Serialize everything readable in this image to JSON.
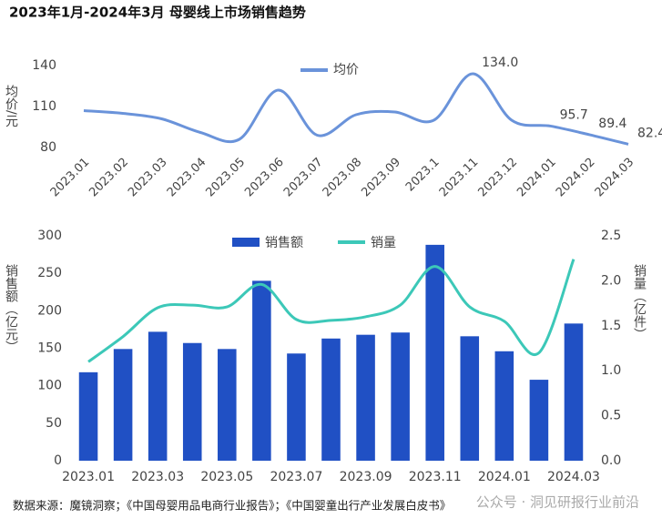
{
  "chart_data": [
    {
      "type": "line",
      "title": "2023年1月-2024年3月 母婴线上市场销售趋势",
      "ylabel": "均价/元",
      "categories": [
        "2023.01",
        "2023.02",
        "2023.03",
        "2023.04",
        "2023.05",
        "2023.06",
        "2023.07",
        "2023.08",
        "2023.09",
        "2023.1",
        "2023.11",
        "2023.12",
        "2024.01",
        "2024.02",
        "2024.03"
      ],
      "series": [
        {
          "name": "均价",
          "color": "#6a93da",
          "values": [
            107,
            105,
            101,
            91,
            86,
            122,
            89,
            104,
            106,
            100,
            134,
            100,
            95.7,
            89.4,
            82.4
          ],
          "value_labels": [
            null,
            null,
            null,
            null,
            null,
            null,
            null,
            null,
            null,
            null,
            "134.0",
            null,
            "95.7",
            "89.4",
            "82.4"
          ]
        }
      ],
      "ylim": [
        80,
        140
      ],
      "yticks": [
        80,
        110,
        140
      ],
      "grid": false,
      "legend": "top"
    },
    {
      "type": "combo",
      "ylabel": "销售额（亿元）",
      "y2label": "销量（亿件）",
      "categories": [
        "2023.01",
        null,
        "2023.03",
        null,
        "2023.05",
        null,
        "2023.07",
        null,
        "2023.09",
        null,
        "2023.11",
        null,
        "2024.01",
        null,
        "2024.03"
      ],
      "series": [
        {
          "name": "销售额",
          "type": "bar",
          "color": "#2050c4",
          "values": [
            118,
            149,
            172,
            157,
            149,
            240,
            143,
            163,
            168,
            171,
            288,
            166,
            146,
            108,
            183
          ]
        },
        {
          "name": "销量",
          "type": "line",
          "axis": "y2",
          "color": "#3cc8b8",
          "values": [
            1.1,
            1.38,
            1.7,
            1.73,
            1.71,
            1.96,
            1.57,
            1.56,
            1.6,
            1.73,
            2.16,
            1.71,
            1.55,
            1.2,
            2.24
          ]
        }
      ],
      "ylim": [
        0,
        300
      ],
      "yticks": [
        0,
        50,
        100,
        150,
        200,
        250,
        300
      ],
      "y2lim": [
        0,
        2.5
      ],
      "y2ticks": [
        {
          "value": 0,
          "label": "0.0"
        },
        0.5,
        {
          "value": 1,
          "label": "1.0"
        },
        1.5,
        {
          "value": 2,
          "label": "2.0"
        },
        2.5
      ],
      "grid": false,
      "legend": "top"
    }
  ],
  "source": "数据来源：魔镜洞察；《中国母婴用品电商行业报告》；《中国婴童出行产业发展白皮书》",
  "watermark": "公众号 · 洞见研报行业前沿"
}
